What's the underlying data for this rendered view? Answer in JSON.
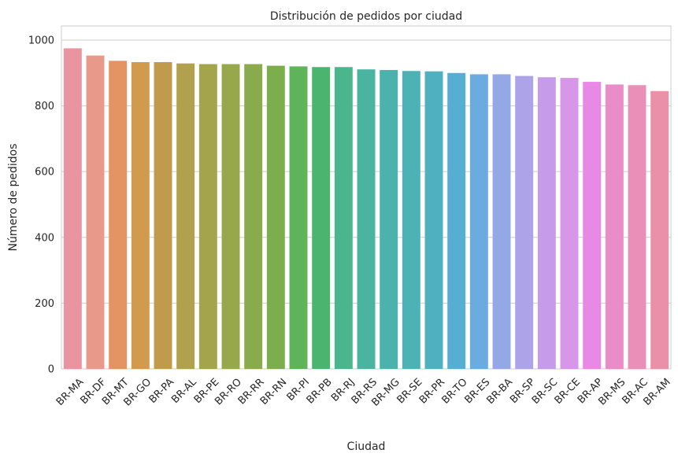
{
  "chart_data": {
    "type": "bar",
    "title": "Distribución de pedidos por ciudad",
    "xlabel": "Ciudad",
    "ylabel": "Número de pedidos",
    "categories": [
      "BR-MA",
      "BR-DF",
      "BR-MT",
      "BR-GO",
      "BR-PA",
      "BR-AL",
      "BR-PE",
      "BR-RO",
      "BR-RR",
      "BR-RN",
      "BR-PI",
      "BR-PB",
      "BR-RJ",
      "BR-RS",
      "BR-MG",
      "BR-SE",
      "BR-PR",
      "BR-TO",
      "BR-ES",
      "BR-BA",
      "BR-SP",
      "BR-SC",
      "BR-CE",
      "BR-AP",
      "BR-MS",
      "BR-AC",
      "BR-AM"
    ],
    "values": [
      975,
      953,
      937,
      933,
      933,
      929,
      927,
      927,
      927,
      922,
      920,
      918,
      918,
      911,
      909,
      906,
      905,
      900,
      896,
      896,
      891,
      887,
      885,
      873,
      865,
      863,
      845
    ],
    "colors": [
      "#ea94a0",
      "#e8998a",
      "#e49463",
      "#d29a4d",
      "#c09b4b",
      "#b1a04c",
      "#a3a44c",
      "#97a84c",
      "#8aab4d",
      "#7cae4e",
      "#5fb45b",
      "#4bb56f",
      "#4bb58e",
      "#4bb4a0",
      "#4bb3ab",
      "#4cb2b5",
      "#4fb0c0",
      "#56aed0",
      "#6aabe0",
      "#94a8e6",
      "#ada3e8",
      "#c69be9",
      "#d896e8",
      "#e88ae5",
      "#e98cc8",
      "#ea90b8",
      "#ea91a8"
    ],
    "ylim": [
      0,
      1000
    ],
    "yticks": [
      0,
      200,
      400,
      600,
      800,
      1000
    ],
    "grid": true
  }
}
